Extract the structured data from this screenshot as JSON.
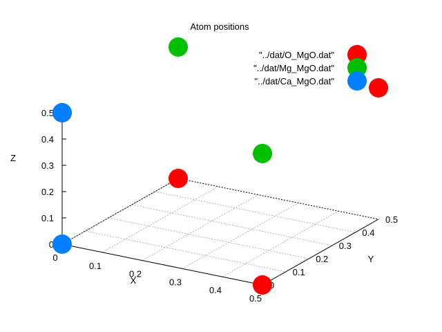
{
  "chart_data": {
    "type": "scatter3d",
    "title": "Atom positions",
    "xlabel": "X",
    "ylabel": "Y",
    "zlabel": "Z",
    "xlim": [
      0,
      0.5
    ],
    "ylim": [
      0,
      0.5
    ],
    "zlim": [
      0,
      0.5
    ],
    "x_ticks": [
      "0",
      "0.1",
      "0.2",
      "0.3",
      "0.4",
      "0.5"
    ],
    "y_ticks": [
      "0",
      "0.1",
      "0.2",
      "0.3",
      "0.4",
      "0.5"
    ],
    "z_ticks": [
      "0",
      "0.1",
      "0.2",
      "0.3",
      "0.4",
      "0.5"
    ],
    "grid": true,
    "legend_position": "top-right",
    "series": [
      {
        "name": "\"../dat/O_MgO.dat\"",
        "color": "#ff0000",
        "points": [
          {
            "x": 0.5,
            "y": 0.0,
            "z": 0.0
          },
          {
            "x": 0.0,
            "y": 0.5,
            "z": 0.0
          },
          {
            "x": 0.0,
            "y": 0.0,
            "z": 0.5
          },
          {
            "x": 0.5,
            "y": 0.5,
            "z": 0.5
          }
        ]
      },
      {
        "name": "\"../dat/Mg_MgO.dat\"",
        "color": "#00c000",
        "points": [
          {
            "x": 0.0,
            "y": 0.5,
            "z": 0.5
          },
          {
            "x": 0.5,
            "y": 0.0,
            "z": 0.5
          }
        ]
      },
      {
        "name": "\"../dat/Ca_MgO.dat\"",
        "color": "#0080ff",
        "points": [
          {
            "x": 0.0,
            "y": 0.0,
            "z": 0.0
          },
          {
            "x": 0.0,
            "y": 0.0,
            "z": 0.5
          }
        ]
      }
    ]
  }
}
